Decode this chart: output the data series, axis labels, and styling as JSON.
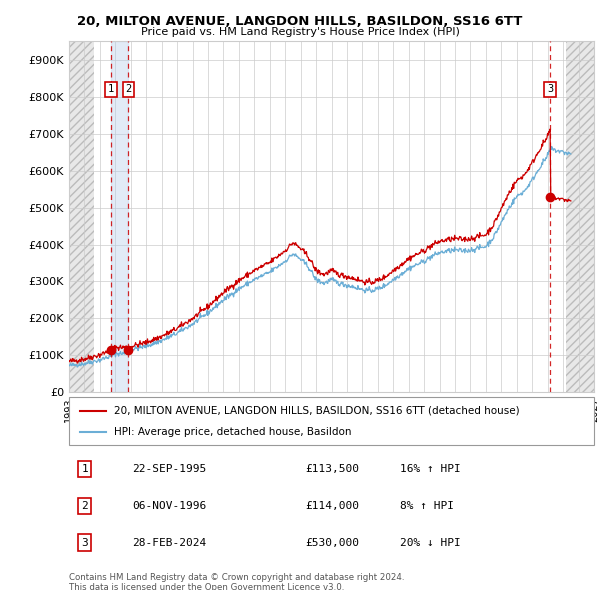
{
  "title_line1": "20, MILTON AVENUE, LANGDON HILLS, BASILDON, SS16 6TT",
  "title_line2": "Price paid vs. HM Land Registry's House Price Index (HPI)",
  "ylim": [
    0,
    950000
  ],
  "yticks": [
    0,
    100000,
    200000,
    300000,
    400000,
    500000,
    600000,
    700000,
    800000,
    900000
  ],
  "ytick_labels": [
    "£0",
    "£100K",
    "£200K",
    "£300K",
    "£400K",
    "£500K",
    "£600K",
    "£700K",
    "£800K",
    "£900K"
  ],
  "xlim_start": 1993.0,
  "xlim_end": 2027.0,
  "hpi_color": "#6baed6",
  "price_color": "#cc0000",
  "legend_house_label": "20, MILTON AVENUE, LANGDON HILLS, BASILDON, SS16 6TT (detached house)",
  "legend_hpi_label": "HPI: Average price, detached house, Basildon",
  "transactions": [
    {
      "num": 1,
      "date": "22-SEP-1995",
      "price": 113500,
      "year": 1995.72,
      "hpi_pct": "16% ↑ HPI"
    },
    {
      "num": 2,
      "date": "06-NOV-1996",
      "price": 114000,
      "year": 1996.85,
      "hpi_pct": "8% ↑ HPI"
    },
    {
      "num": 3,
      "date": "28-FEB-2024",
      "price": 530000,
      "year": 2024.16,
      "hpi_pct": "20% ↓ HPI"
    }
  ],
  "footer_line1": "Contains HM Land Registry data © Crown copyright and database right 2024.",
  "footer_line2": "This data is licensed under the Open Government Licence v3.0.",
  "hatch_left_start": 1993.0,
  "hatch_left_end": 1994.6,
  "hatch_right_start": 2025.2,
  "hatch_right_end": 2027.0,
  "highlight_fill_start": 1995.72,
  "highlight_fill_end": 1996.85
}
